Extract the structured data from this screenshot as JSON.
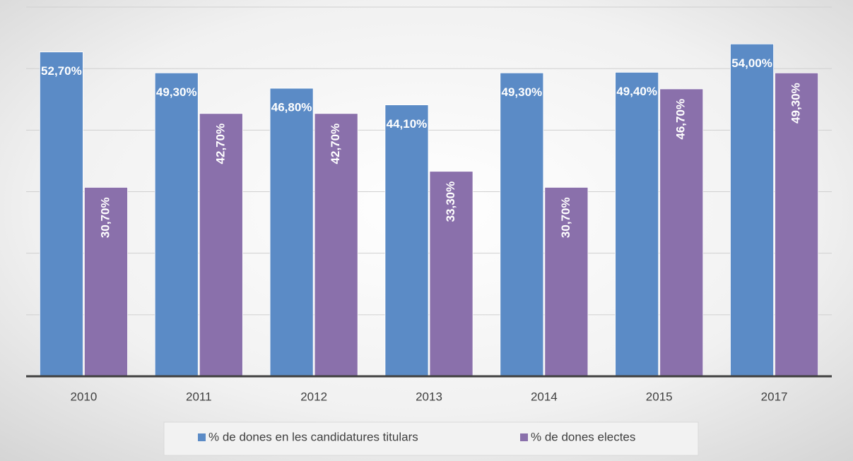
{
  "chart_data": {
    "type": "bar",
    "categories": [
      "2010",
      "2011",
      "2012",
      "2013",
      "2014",
      "2015",
      "2017"
    ],
    "series": [
      {
        "name": "% de dones en les candidatures titulars",
        "color": "#5b8bc6",
        "values": [
          52.7,
          49.3,
          46.8,
          44.1,
          49.3,
          49.4,
          54.0
        ],
        "value_labels": [
          "52,70%",
          "49,30%",
          "46,80%",
          "44,10%",
          "49,30%",
          "49,40%",
          "54,00%"
        ]
      },
      {
        "name": "% de dones electes",
        "color": "#8a70ab",
        "values": [
          30.7,
          42.7,
          42.7,
          33.3,
          30.7,
          46.7,
          49.3
        ],
        "value_labels": [
          "30,70%",
          "42,70%",
          "42,70%",
          "33,30%",
          "30,70%",
          "46,70%",
          "49,30%"
        ]
      }
    ],
    "ylim": [
      0,
      60
    ],
    "yticks": [
      0,
      10,
      20,
      30,
      40,
      50,
      60
    ],
    "grid": true,
    "legend": "bottom"
  }
}
